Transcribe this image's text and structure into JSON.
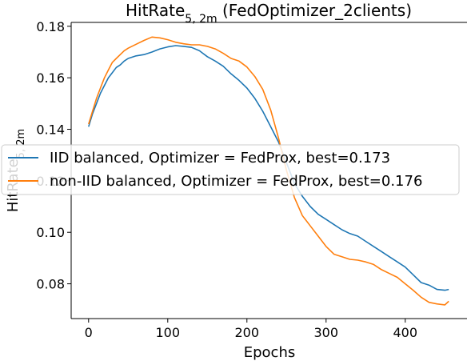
{
  "chart_data": {
    "type": "line",
    "title": "HitRate",
    "title_sub": "5, 2m",
    "title_suffix": " (FedOptimizer_2clients)",
    "xlabel": "Epochs",
    "ylabel": "HitRate",
    "ylabel_sub": "5, 2m",
    "xlim": [
      -22,
      478
    ],
    "ylim": [
      0.0665,
      0.1815
    ],
    "xticks": [
      0,
      100,
      200,
      300,
      400
    ],
    "yticks": [
      0.08,
      0.1,
      0.12,
      0.14,
      0.16,
      0.18
    ],
    "ytick_labels": [
      "0.08",
      "0.10",
      "0.12",
      "0.14",
      "0.16",
      "0.18"
    ],
    "grid": false,
    "legend_position": "center",
    "series": [
      {
        "name": "IID balanced, Optimizer = FedProx, best=0.173",
        "color": "#1f77b4",
        "x": [
          0,
          5,
          10,
          15,
          20,
          25,
          30,
          35,
          40,
          45,
          50,
          60,
          70,
          80,
          90,
          100,
          110,
          120,
          130,
          140,
          150,
          160,
          170,
          180,
          190,
          200,
          210,
          220,
          230,
          240,
          250,
          260,
          270,
          280,
          290,
          300,
          310,
          320,
          330,
          340,
          350,
          360,
          370,
          380,
          390,
          400,
          410,
          420,
          430,
          440,
          450,
          455
        ],
        "y": [
          0.141,
          0.146,
          0.15,
          0.154,
          0.157,
          0.16,
          0.162,
          0.164,
          0.165,
          0.1665,
          0.1675,
          0.1685,
          0.169,
          0.17,
          0.1712,
          0.172,
          0.1725,
          0.1722,
          0.1718,
          0.1705,
          0.1682,
          0.1665,
          0.1645,
          0.1615,
          0.159,
          0.156,
          0.152,
          0.147,
          0.141,
          0.135,
          0.127,
          0.119,
          0.114,
          0.11,
          0.107,
          0.105,
          0.103,
          0.101,
          0.0995,
          0.0985,
          0.0965,
          0.0945,
          0.0925,
          0.0905,
          0.0885,
          0.0865,
          0.0835,
          0.0805,
          0.0795,
          0.0778,
          0.0775,
          0.0778
        ]
      },
      {
        "name": "non-IID balanced, Optimizer = FedProx, best=0.176",
        "color": "#ff7f0e",
        "x": [
          0,
          5,
          10,
          15,
          20,
          25,
          30,
          35,
          40,
          45,
          50,
          60,
          70,
          80,
          90,
          100,
          110,
          120,
          130,
          140,
          150,
          160,
          170,
          180,
          190,
          200,
          210,
          220,
          230,
          240,
          250,
          260,
          270,
          280,
          290,
          300,
          310,
          320,
          330,
          340,
          350,
          360,
          370,
          380,
          390,
          400,
          410,
          420,
          430,
          440,
          450,
          455
        ],
        "y": [
          0.142,
          0.147,
          0.152,
          0.156,
          0.16,
          0.163,
          0.166,
          0.1675,
          0.169,
          0.1705,
          0.1715,
          0.173,
          0.1745,
          0.1758,
          0.1755,
          0.1748,
          0.1738,
          0.1732,
          0.1728,
          0.1728,
          0.1722,
          0.1712,
          0.1695,
          0.1675,
          0.1665,
          0.1642,
          0.1605,
          0.1555,
          0.1475,
          0.1365,
          0.124,
          0.1135,
          0.1065,
          0.1025,
          0.0985,
          0.0945,
          0.0915,
          0.0905,
          0.0895,
          0.0892,
          0.0885,
          0.0875,
          0.0855,
          0.084,
          0.0825,
          0.08,
          0.0775,
          0.0748,
          0.0728,
          0.0722,
          0.0718,
          0.0732
        ]
      }
    ]
  }
}
